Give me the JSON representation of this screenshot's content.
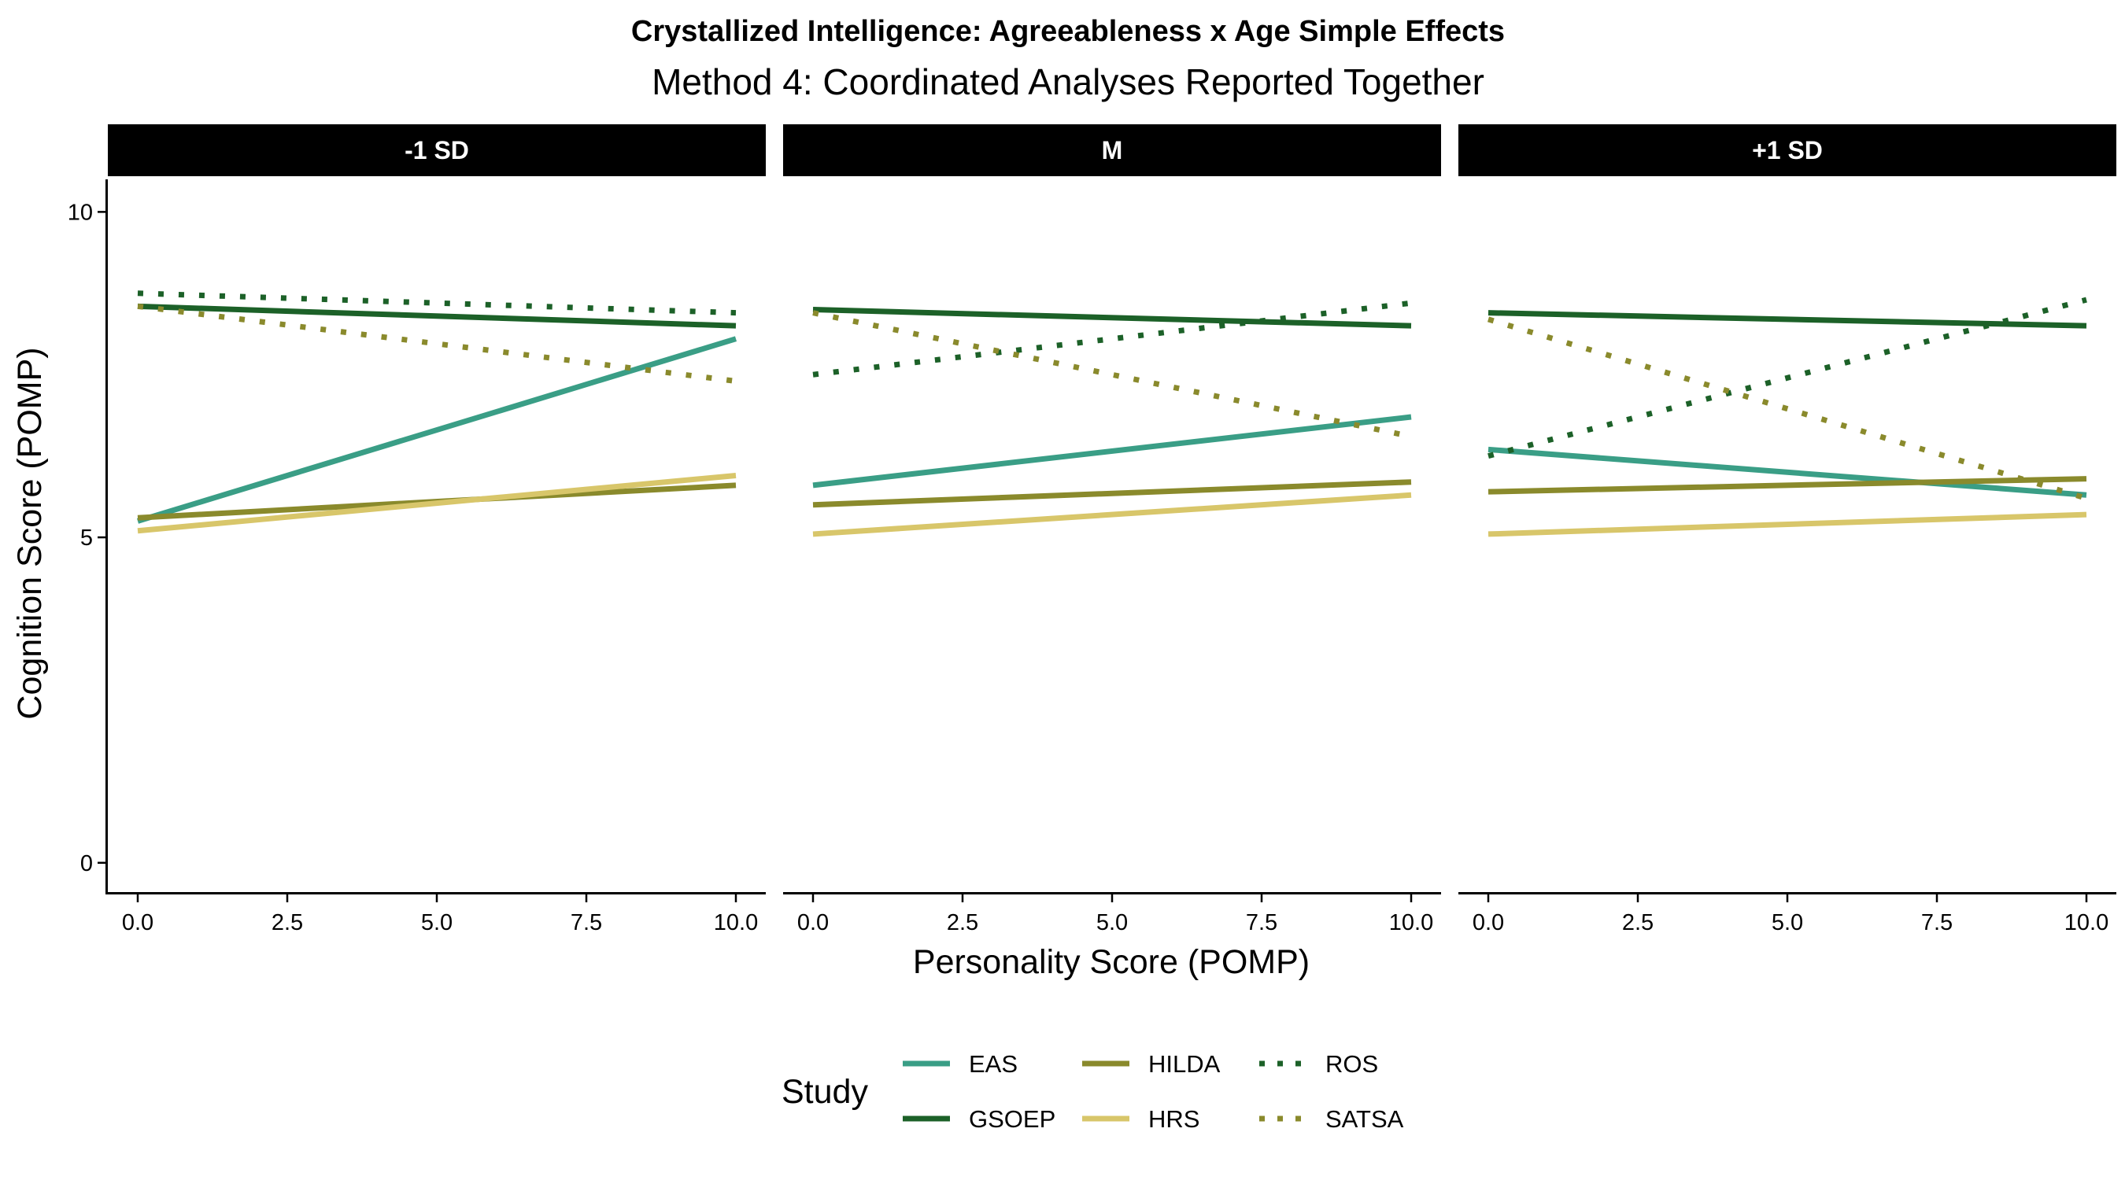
{
  "chart_data": {
    "type": "line",
    "title": "Crystallized Intelligence: Agreeableness x Age Simple Effects",
    "subtitle": "Method 4: Coordinated Analyses Reported Together",
    "xlabel": "Personality Score (POMP)",
    "ylabel": "Cognition Score (POMP)",
    "xlim": [
      -0.5,
      10.5
    ],
    "ylim": [
      -0.45,
      10.5
    ],
    "x_ticks": [
      0,
      2.5,
      5,
      7.5,
      10
    ],
    "x_tick_labels": [
      "0.0",
      "2.5",
      "5.0",
      "7.5",
      "10.0"
    ],
    "y_ticks": [
      0,
      5,
      10
    ],
    "y_tick_labels": [
      "0",
      "5",
      "10"
    ],
    "grid": false,
    "legend": {
      "title": "Study",
      "placement": "bottom",
      "items": [
        {
          "name": "EAS",
          "color": "#3a9e86",
          "dash": "solid"
        },
        {
          "name": "GSOEP",
          "color": "#1c6128",
          "dash": "solid"
        },
        {
          "name": "HILDA",
          "color": "#8a8a2c",
          "dash": "solid"
        },
        {
          "name": "HRS",
          "color": "#d8c66a",
          "dash": "solid"
        },
        {
          "name": "ROS",
          "color": "#1c6128",
          "dash": "dotted"
        },
        {
          "name": "SATSA",
          "color": "#8a8a2c",
          "dash": "dotted"
        }
      ]
    },
    "panels": [
      {
        "label": "-1 SD",
        "series": [
          {
            "name": "EAS",
            "x": [
              0,
              10
            ],
            "y": [
              5.25,
              8.05
            ]
          },
          {
            "name": "GSOEP",
            "x": [
              0,
              10
            ],
            "y": [
              8.55,
              8.25
            ]
          },
          {
            "name": "HILDA",
            "x": [
              0,
              10
            ],
            "y": [
              5.3,
              5.8
            ]
          },
          {
            "name": "HRS",
            "x": [
              0,
              10
            ],
            "y": [
              5.1,
              5.95
            ]
          },
          {
            "name": "ROS",
            "x": [
              0,
              10
            ],
            "y": [
              8.75,
              8.45
            ]
          },
          {
            "name": "SATSA",
            "x": [
              0,
              10
            ],
            "y": [
              8.55,
              7.4
            ]
          }
        ]
      },
      {
        "label": "M",
        "series": [
          {
            "name": "EAS",
            "x": [
              0,
              10
            ],
            "y": [
              5.8,
              6.85
            ]
          },
          {
            "name": "GSOEP",
            "x": [
              0,
              10
            ],
            "y": [
              8.5,
              8.25
            ]
          },
          {
            "name": "HILDA",
            "x": [
              0,
              10
            ],
            "y": [
              5.5,
              5.85
            ]
          },
          {
            "name": "HRS",
            "x": [
              0,
              10
            ],
            "y": [
              5.05,
              5.65
            ]
          },
          {
            "name": "ROS",
            "x": [
              0,
              10
            ],
            "y": [
              7.5,
              8.6
            ]
          },
          {
            "name": "SATSA",
            "x": [
              0,
              10
            ],
            "y": [
              8.45,
              6.55
            ]
          }
        ]
      },
      {
        "label": "+1 SD",
        "series": [
          {
            "name": "EAS",
            "x": [
              0,
              10
            ],
            "y": [
              6.35,
              5.65
            ]
          },
          {
            "name": "GSOEP",
            "x": [
              0,
              10
            ],
            "y": [
              8.45,
              8.25
            ]
          },
          {
            "name": "HILDA",
            "x": [
              0,
              10
            ],
            "y": [
              5.7,
              5.9
            ]
          },
          {
            "name": "HRS",
            "x": [
              0,
              10
            ],
            "y": [
              5.05,
              5.35
            ]
          },
          {
            "name": "ROS",
            "x": [
              0,
              10
            ],
            "y": [
              6.25,
              8.65
            ]
          },
          {
            "name": "SATSA",
            "x": [
              0,
              10
            ],
            "y": [
              8.35,
              5.6
            ]
          }
        ]
      }
    ]
  }
}
